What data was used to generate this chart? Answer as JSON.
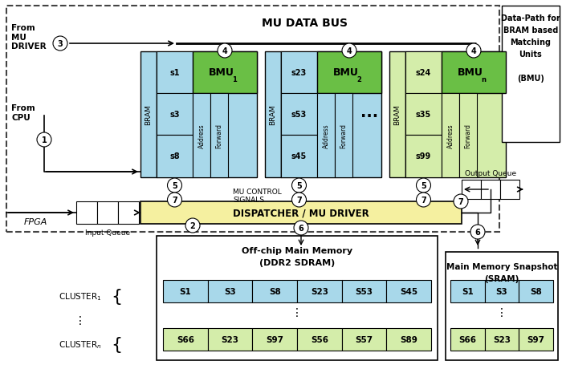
{
  "bg_color": "#ffffff",
  "colors": {
    "bram_blue": "#a8d8ea",
    "bmu_green": "#6abf45",
    "slot_blue": "#a8d8ea",
    "slot_green": "#d4edaa",
    "addr_fwd_blue": "#a8d8ea",
    "addr_fwd_green": "#d4edaa",
    "dispatcher_fill": "#f5f0a0",
    "mem_row1": "#a8d8ea",
    "mem_row2": "#d4edaa",
    "sram_row1": "#a8d8ea",
    "sram_row2": "#d4edaa"
  },
  "bmu_units": [
    {
      "slots": [
        "s1",
        "s3",
        "s8"
      ],
      "sub": "1",
      "is_green": false
    },
    {
      "slots": [
        "s23",
        "s53",
        "s45"
      ],
      "sub": "2",
      "is_green": false
    },
    {
      "slots": [
        "s24",
        "s35",
        "s99"
      ],
      "sub": "n",
      "is_green": true
    }
  ],
  "mem_row1_slots": [
    "S1",
    "S3",
    "S8",
    "S23",
    "S53",
    "S45"
  ],
  "mem_row2_slots": [
    "S66",
    "S23",
    "S97",
    "S56",
    "S57",
    "S89"
  ],
  "sram_row1_slots": [
    "S1",
    "S3",
    "S8"
  ],
  "sram_row2_slots": [
    "S66",
    "S23",
    "S97"
  ]
}
